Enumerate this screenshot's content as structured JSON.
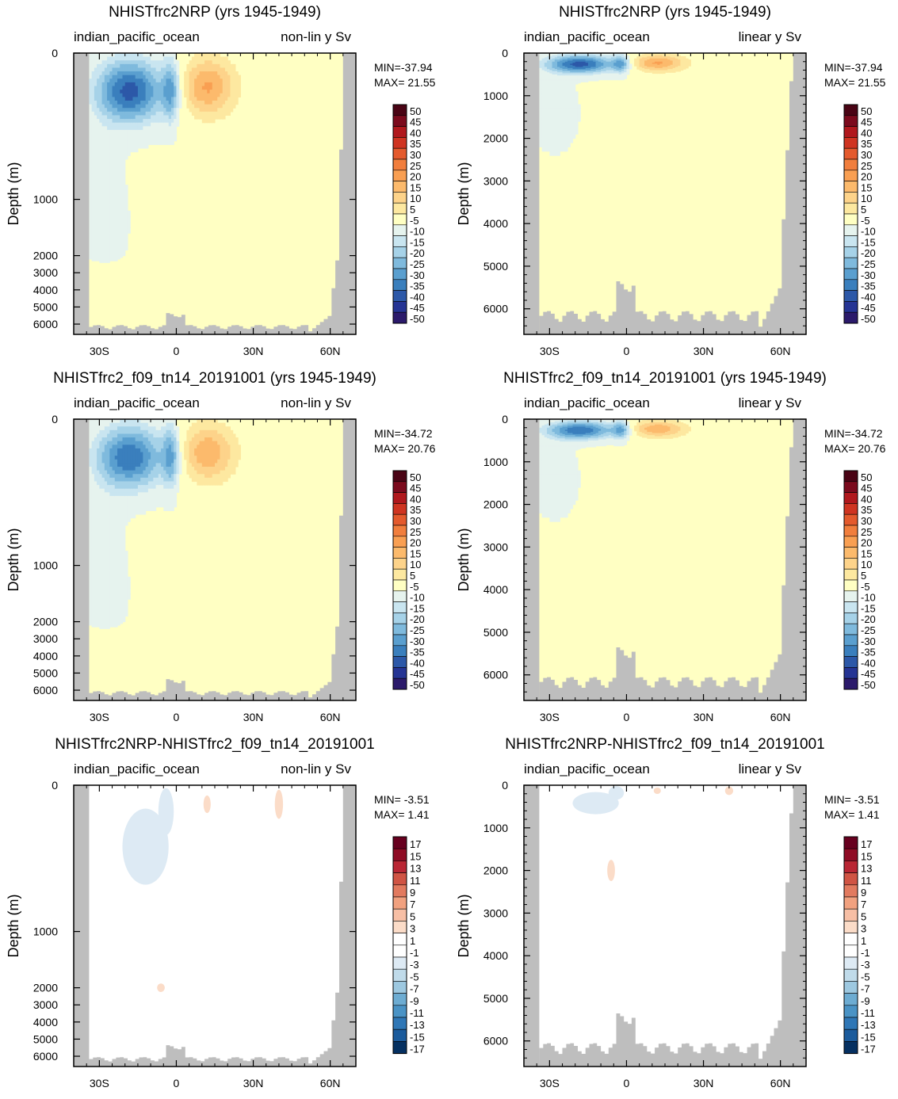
{
  "colors": {
    "land": "#bebebe",
    "white": "#ffffff",
    "neutral_zero": "#ffffc3",
    "stroke": "#000000"
  },
  "fill_palette": [
    "#2b1a6b",
    "#253494",
    "#2c58a8",
    "#3a7fbd",
    "#5a9fcf",
    "#7fbadd",
    "#a6d2e8",
    "#c9e5f0",
    "#e6f3ee",
    "#ffffc3",
    "#fde8a0",
    "#fdd38a",
    "#fcba6c",
    "#f99f52",
    "#f17e3d",
    "#e45a2d",
    "#cf3421",
    "#b0181d",
    "#7b0a1d",
    "#4a0415"
  ],
  "diff_palette": [
    "#053061",
    "#1b5b9c",
    "#2f77b6",
    "#4a93c5",
    "#6dacd2",
    "#9dc8e0",
    "#c0dbea",
    "#ddeaf4",
    "#ffffff",
    "#ffffff",
    "#fbdcc8",
    "#f7bfa5",
    "#f1a17f",
    "#e27a5f",
    "#d05444",
    "#b92634",
    "#8f0c25",
    "#67001f"
  ],
  "chart_data": [
    {
      "type": "heatmap",
      "title": "NHISTfrc2NRP (yrs 1945-1949)",
      "subtitle_left": "indian_pacific_ocean",
      "subtitle_right": "non-lin y Sv",
      "ylabel": "Depth (m)",
      "xticks": [
        "30S",
        "0",
        "30N",
        "60N"
      ],
      "xtick_values": [
        -30,
        0,
        30,
        60
      ],
      "xlim": [
        -40,
        70
      ],
      "yscale": "non-linear",
      "yticks": [
        "0",
        "1000",
        "2000",
        "3000",
        "4000",
        "5000",
        "6000"
      ],
      "ylim": [
        0,
        6600
      ],
      "min_label": "MIN=-37.94",
      "max_label": "MAX= 21.55",
      "colorbar_labels": [
        "50",
        "45",
        "40",
        "35",
        "30",
        "25",
        "20",
        "15",
        "10",
        "5",
        "-5",
        "-10",
        "-15",
        "-20",
        "-25",
        "-30",
        "-35",
        "-40",
        "-45",
        "-50"
      ],
      "extrema": {
        "min": -37.94,
        "max": 21.55
      },
      "palette": "fill"
    },
    {
      "type": "heatmap",
      "title": "NHISTfrc2NRP (yrs 1945-1949)",
      "subtitle_left": "indian_pacific_ocean",
      "subtitle_right": "linear y Sv",
      "ylabel": "Depth (m)",
      "xticks": [
        "30S",
        "0",
        "30N",
        "60N"
      ],
      "xtick_values": [
        -30,
        0,
        30,
        60
      ],
      "xlim": [
        -40,
        70
      ],
      "yscale": "linear",
      "yticks": [
        "0",
        "1000",
        "2000",
        "3000",
        "4000",
        "5000",
        "6000"
      ],
      "ylim": [
        0,
        6600
      ],
      "min_label": "MIN=-37.94",
      "max_label": "MAX= 21.55",
      "colorbar_labels": [
        "50",
        "45",
        "40",
        "35",
        "30",
        "25",
        "20",
        "15",
        "10",
        "5",
        "-5",
        "-10",
        "-15",
        "-20",
        "-25",
        "-30",
        "-35",
        "-40",
        "-45",
        "-50"
      ],
      "extrema": {
        "min": -37.94,
        "max": 21.55
      },
      "palette": "fill"
    },
    {
      "type": "heatmap",
      "title": "NHISTfrc2_f09_tn14_20191001 (yrs 1945-1949)",
      "subtitle_left": "indian_pacific_ocean",
      "subtitle_right": "non-lin y Sv",
      "ylabel": "Depth (m)",
      "xticks": [
        "30S",
        "0",
        "30N",
        "60N"
      ],
      "xtick_values": [
        -30,
        0,
        30,
        60
      ],
      "xlim": [
        -40,
        70
      ],
      "yscale": "non-linear",
      "yticks": [
        "0",
        "1000",
        "2000",
        "3000",
        "4000",
        "5000",
        "6000"
      ],
      "ylim": [
        0,
        6600
      ],
      "min_label": "MIN=-34.72",
      "max_label": "MAX= 20.76",
      "colorbar_labels": [
        "50",
        "45",
        "40",
        "35",
        "30",
        "25",
        "20",
        "15",
        "10",
        "5",
        "-5",
        "-10",
        "-15",
        "-20",
        "-25",
        "-30",
        "-35",
        "-40",
        "-45",
        "-50"
      ],
      "extrema": {
        "min": -34.72,
        "max": 20.76
      },
      "palette": "fill"
    },
    {
      "type": "heatmap",
      "title": "NHISTfrc2_f09_tn14_20191001 (yrs 1945-1949)",
      "subtitle_left": "indian_pacific_ocean",
      "subtitle_right": "linear y Sv",
      "ylabel": "Depth (m)",
      "xticks": [
        "30S",
        "0",
        "30N",
        "60N"
      ],
      "xtick_values": [
        -30,
        0,
        30,
        60
      ],
      "xlim": [
        -40,
        70
      ],
      "yscale": "linear",
      "yticks": [
        "0",
        "1000",
        "2000",
        "3000",
        "4000",
        "5000",
        "6000"
      ],
      "ylim": [
        0,
        6600
      ],
      "min_label": "MIN=-34.72",
      "max_label": "MAX= 20.76",
      "colorbar_labels": [
        "50",
        "45",
        "40",
        "35",
        "30",
        "25",
        "20",
        "15",
        "10",
        "5",
        "-5",
        "-10",
        "-15",
        "-20",
        "-25",
        "-30",
        "-35",
        "-40",
        "-45",
        "-50"
      ],
      "extrema": {
        "min": -34.72,
        "max": 20.76
      },
      "palette": "fill"
    },
    {
      "type": "heatmap",
      "title": "NHISTfrc2NRP-NHISTfrc2_f09_tn14_20191001",
      "subtitle_left": "indian_pacific_ocean",
      "subtitle_right": "non-lin y Sv",
      "ylabel": "Depth (m)",
      "xticks": [
        "30S",
        "0",
        "30N",
        "60N"
      ],
      "xtick_values": [
        -30,
        0,
        30,
        60
      ],
      "xlim": [
        -40,
        70
      ],
      "yscale": "non-linear",
      "yticks": [
        "0",
        "1000",
        "2000",
        "3000",
        "4000",
        "5000",
        "6000"
      ],
      "ylim": [
        0,
        6600
      ],
      "min_label": "MIN= -3.51",
      "max_label": "MAX=  1.41",
      "colorbar_labels": [
        "17",
        "15",
        "13",
        "11",
        "9",
        "7",
        "5",
        "3",
        "1",
        "-1",
        "-3",
        "-5",
        "-7",
        "-9",
        "-11",
        "-13",
        "-15",
        "-17"
      ],
      "extrema": {
        "min": -3.51,
        "max": 1.41
      },
      "palette": "diff"
    },
    {
      "type": "heatmap",
      "title": "NHISTfrc2NRP-NHISTfrc2_f09_tn14_20191001",
      "subtitle_left": "indian_pacific_ocean",
      "subtitle_right": "linear y Sv",
      "ylabel": "Depth (m)",
      "xticks": [
        "30S",
        "0",
        "30N",
        "60N"
      ],
      "xtick_values": [
        -30,
        0,
        30,
        60
      ],
      "xlim": [
        -40,
        70
      ],
      "yscale": "linear",
      "yticks": [
        "0",
        "1000",
        "2000",
        "3000",
        "4000",
        "5000",
        "6000"
      ],
      "ylim": [
        0,
        6600
      ],
      "min_label": "MIN= -3.51",
      "max_label": "MAX=  1.41",
      "colorbar_labels": [
        "17",
        "15",
        "13",
        "11",
        "9",
        "7",
        "5",
        "3",
        "1",
        "-1",
        "-3",
        "-5",
        "-7",
        "-9",
        "-11",
        "-13",
        "-15",
        "-17"
      ],
      "extrema": {
        "min": -3.51,
        "max": 1.41
      },
      "palette": "diff"
    }
  ]
}
